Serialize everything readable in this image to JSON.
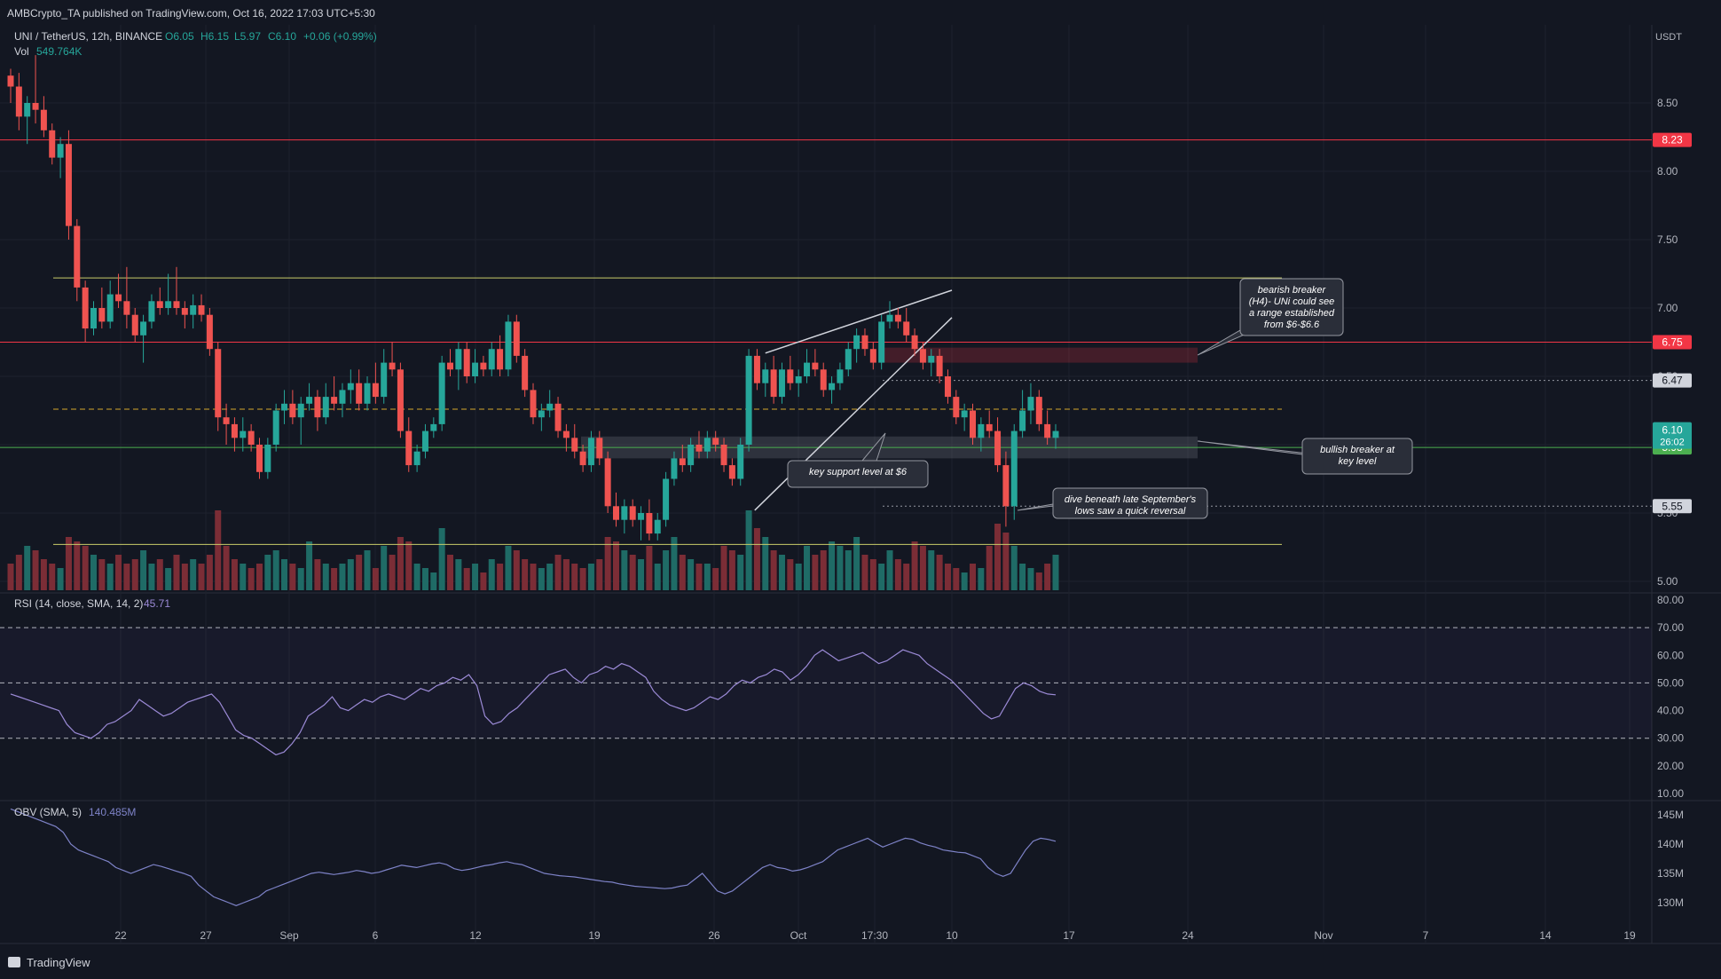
{
  "header": {
    "published": "AMBCrypto_TA published on TradingView.com, Oct 16, 2022 17:03 UTC+5:30",
    "symbol": "UNI / TetherUS, 12h, BINANCE",
    "ohlc": {
      "o": "O6.05",
      "h": "H6.15",
      "l": "L5.97",
      "c": "C6.10",
      "chg": "+0.06 (+0.99%)"
    },
    "vol_label": "Vol",
    "vol_value": "549.764K",
    "currency": "USDT"
  },
  "footer": {
    "logo_text": "TradingView"
  },
  "colors": {
    "bg": "#131722",
    "grid": "#1e222d",
    "up": "#26a69a",
    "down": "#ef5350",
    "up_vol": "#1f6b66",
    "down_vol": "#7b2d36",
    "red_level": "#f23645",
    "yellow_level": "#c9cc6a",
    "green_level": "#4caf50",
    "text": "#b2b5be",
    "rsi": "#7e57c2",
    "obv": "#7e83c8"
  },
  "chart_data": [
    {
      "type": "candlestick",
      "pane": "price",
      "x_ticks": [
        "22",
        "27",
        "Sep",
        "6",
        "12",
        "19",
        "26",
        "Oct",
        "17:30",
        "10",
        "17",
        "24",
        "Nov",
        "7",
        "14",
        "19"
      ],
      "y_ticks": [
        "8.50",
        "8.00",
        "7.50",
        "7.00",
        "6.50",
        "6.00",
        "5.50",
        "5.00"
      ],
      "ylim": [
        4.9,
        8.9
      ],
      "candles_ohlc": [
        [
          8.7,
          8.75,
          8.5,
          8.62
        ],
        [
          8.62,
          8.72,
          8.3,
          8.4
        ],
        [
          8.4,
          8.55,
          8.2,
          8.5
        ],
        [
          8.5,
          8.85,
          8.35,
          8.45
        ],
        [
          8.45,
          8.55,
          8.25,
          8.3
        ],
        [
          8.3,
          8.35,
          8.05,
          8.1
        ],
        [
          8.1,
          8.25,
          7.95,
          8.2
        ],
        [
          8.2,
          8.3,
          7.5,
          7.6
        ],
        [
          7.6,
          7.65,
          7.05,
          7.15
        ],
        [
          7.15,
          7.2,
          6.75,
          6.85
        ],
        [
          6.85,
          7.05,
          6.8,
          7.0
        ],
        [
          7.0,
          7.15,
          6.85,
          6.9
        ],
        [
          6.9,
          7.2,
          6.85,
          7.1
        ],
        [
          7.1,
          7.25,
          7.0,
          7.05
        ],
        [
          7.05,
          7.3,
          6.85,
          6.95
        ],
        [
          6.95,
          7.0,
          6.75,
          6.8
        ],
        [
          6.8,
          6.95,
          6.6,
          6.9
        ],
        [
          6.9,
          7.1,
          6.85,
          7.05
        ],
        [
          7.05,
          7.15,
          6.95,
          7.0
        ],
        [
          7.0,
          7.25,
          6.95,
          7.05
        ],
        [
          7.05,
          7.3,
          6.95,
          7.0
        ],
        [
          7.0,
          7.05,
          6.85,
          6.95
        ],
        [
          6.95,
          7.1,
          6.85,
          7.02
        ],
        [
          7.02,
          7.1,
          6.9,
          6.95
        ],
        [
          6.95,
          7.0,
          6.65,
          6.7
        ],
        [
          6.7,
          6.75,
          6.1,
          6.2
        ],
        [
          6.2,
          6.3,
          6.0,
          6.15
        ],
        [
          6.15,
          6.2,
          5.95,
          6.05
        ],
        [
          6.05,
          6.2,
          5.95,
          6.1
        ],
        [
          6.1,
          6.15,
          5.95,
          6.0
        ],
        [
          6.0,
          6.05,
          5.75,
          5.8
        ],
        [
          5.8,
          6.05,
          5.75,
          6.0
        ],
        [
          6.0,
          6.3,
          5.95,
          6.25
        ],
        [
          6.25,
          6.4,
          6.15,
          6.3
        ],
        [
          6.3,
          6.4,
          6.15,
          6.2
        ],
        [
          6.2,
          6.35,
          6.0,
          6.3
        ],
        [
          6.3,
          6.45,
          6.25,
          6.35
        ],
        [
          6.35,
          6.4,
          6.1,
          6.2
        ],
        [
          6.2,
          6.45,
          6.15,
          6.35
        ],
        [
          6.35,
          6.5,
          6.25,
          6.3
        ],
        [
          6.3,
          6.45,
          6.2,
          6.4
        ],
        [
          6.4,
          6.55,
          6.3,
          6.45
        ],
        [
          6.45,
          6.55,
          6.25,
          6.3
        ],
        [
          6.3,
          6.5,
          6.25,
          6.45
        ],
        [
          6.45,
          6.6,
          6.3,
          6.35
        ],
        [
          6.35,
          6.7,
          6.3,
          6.6
        ],
        [
          6.6,
          6.75,
          6.5,
          6.55
        ],
        [
          6.55,
          6.6,
          6.05,
          6.1
        ],
        [
          6.1,
          6.2,
          5.8,
          5.85
        ],
        [
          5.85,
          6.0,
          5.8,
          5.95
        ],
        [
          5.95,
          6.15,
          5.9,
          6.1
        ],
        [
          6.1,
          6.2,
          6.05,
          6.15
        ],
        [
          6.15,
          6.65,
          6.1,
          6.6
        ],
        [
          6.6,
          6.7,
          6.5,
          6.55
        ],
        [
          6.55,
          6.75,
          6.4,
          6.7
        ],
        [
          6.7,
          6.75,
          6.45,
          6.5
        ],
        [
          6.5,
          6.7,
          6.45,
          6.6
        ],
        [
          6.6,
          6.65,
          6.5,
          6.55
        ],
        [
          6.55,
          6.75,
          6.5,
          6.7
        ],
        [
          6.7,
          6.8,
          6.5,
          6.55
        ],
        [
          6.55,
          6.95,
          6.5,
          6.9
        ],
        [
          6.9,
          6.95,
          6.6,
          6.65
        ],
        [
          6.65,
          6.7,
          6.35,
          6.4
        ],
        [
          6.4,
          6.45,
          6.15,
          6.2
        ],
        [
          6.2,
          6.3,
          6.1,
          6.25
        ],
        [
          6.25,
          6.4,
          6.2,
          6.3
        ],
        [
          6.3,
          6.35,
          6.05,
          6.1
        ],
        [
          6.1,
          6.15,
          5.95,
          6.05
        ],
        [
          6.05,
          6.15,
          5.9,
          5.95
        ],
        [
          5.95,
          6.0,
          5.8,
          5.85
        ],
        [
          5.85,
          6.1,
          5.8,
          6.05
        ],
        [
          6.05,
          6.1,
          5.85,
          5.9
        ],
        [
          5.9,
          5.95,
          5.5,
          5.55
        ],
        [
          5.55,
          5.65,
          5.4,
          5.45
        ],
        [
          5.45,
          5.6,
          5.35,
          5.55
        ],
        [
          5.55,
          5.6,
          5.4,
          5.45
        ],
        [
          5.45,
          5.55,
          5.3,
          5.5
        ],
        [
          5.5,
          5.6,
          5.3,
          5.35
        ],
        [
          5.35,
          5.5,
          5.3,
          5.45
        ],
        [
          5.45,
          5.8,
          5.4,
          5.75
        ],
        [
          5.75,
          5.95,
          5.7,
          5.9
        ],
        [
          5.9,
          6.0,
          5.8,
          5.85
        ],
        [
          5.85,
          6.05,
          5.8,
          6.0
        ],
        [
          6.0,
          6.1,
          5.9,
          5.95
        ],
        [
          5.95,
          6.1,
          5.9,
          6.05
        ],
        [
          6.05,
          6.1,
          5.95,
          6.0
        ],
        [
          6.0,
          6.05,
          5.8,
          5.85
        ],
        [
          5.85,
          5.9,
          5.7,
          5.75
        ],
        [
          5.75,
          6.05,
          5.7,
          6.0
        ],
        [
          6.0,
          6.7,
          5.95,
          6.65
        ],
        [
          6.65,
          6.7,
          6.4,
          6.45
        ],
        [
          6.45,
          6.6,
          6.35,
          6.55
        ],
        [
          6.55,
          6.65,
          6.3,
          6.35
        ],
        [
          6.35,
          6.6,
          6.3,
          6.55
        ],
        [
          6.55,
          6.65,
          6.4,
          6.45
        ],
        [
          6.45,
          6.55,
          6.35,
          6.5
        ],
        [
          6.5,
          6.7,
          6.45,
          6.6
        ],
        [
          6.6,
          6.7,
          6.5,
          6.55
        ],
        [
          6.55,
          6.6,
          6.35,
          6.4
        ],
        [
          6.4,
          6.5,
          6.3,
          6.45
        ],
        [
          6.45,
          6.6,
          6.4,
          6.55
        ],
        [
          6.55,
          6.75,
          6.5,
          6.7
        ],
        [
          6.7,
          6.85,
          6.6,
          6.8
        ],
        [
          6.8,
          6.85,
          6.65,
          6.7
        ],
        [
          6.7,
          6.75,
          6.55,
          6.6
        ],
        [
          6.6,
          6.95,
          6.55,
          6.9
        ],
        [
          6.9,
          7.05,
          6.85,
          6.95
        ],
        [
          6.95,
          7.0,
          6.85,
          6.9
        ],
        [
          6.9,
          7.0,
          6.75,
          6.8
        ],
        [
          6.8,
          6.85,
          6.65,
          6.7
        ],
        [
          6.7,
          6.75,
          6.55,
          6.6
        ],
        [
          6.6,
          6.7,
          6.5,
          6.65
        ],
        [
          6.65,
          6.7,
          6.45,
          6.5
        ],
        [
          6.5,
          6.55,
          6.3,
          6.35
        ],
        [
          6.35,
          6.4,
          6.15,
          6.2
        ],
        [
          6.2,
          6.3,
          6.1,
          6.25
        ],
        [
          6.25,
          6.3,
          6.0,
          6.05
        ],
        [
          6.05,
          6.2,
          5.95,
          6.15
        ],
        [
          6.15,
          6.25,
          6.05,
          6.1
        ],
        [
          6.1,
          6.2,
          5.8,
          5.85
        ],
        [
          5.85,
          5.95,
          5.4,
          5.55
        ],
        [
          5.55,
          6.15,
          5.45,
          6.1
        ],
        [
          6.1,
          6.4,
          6.05,
          6.25
        ],
        [
          6.25,
          6.45,
          6.15,
          6.35
        ],
        [
          6.35,
          6.4,
          6.1,
          6.15
        ],
        [
          6.15,
          6.25,
          6.0,
          6.05
        ],
        [
          6.05,
          6.15,
          5.97,
          6.1
        ]
      ],
      "levels": [
        {
          "value": 8.23,
          "label": "8.23",
          "color": "#f23645"
        },
        {
          "value": 7.22,
          "color": "#c9cc6a"
        },
        {
          "value": 6.75,
          "label": "6.75",
          "color": "#f23645"
        },
        {
          "value": 6.47,
          "label": "6.47",
          "style": "dotted",
          "color": "#9598a1"
        },
        {
          "value": 6.26,
          "style": "dashed",
          "color": "#d4a72c"
        },
        {
          "value": 5.98,
          "label": "5.98",
          "color": "#4caf50"
        },
        {
          "value": 5.55,
          "label": "5.55",
          "style": "dotted",
          "color": "#9598a1"
        },
        {
          "value": 5.27,
          "color": "#c9cc6a"
        }
      ],
      "current_price": {
        "label": "6.10",
        "countdown": "26:02"
      },
      "annotations": [
        {
          "text": "bearish breaker (H4)- UNi could see a range established from $6-$6.6"
        },
        {
          "text": "key support level at $6"
        },
        {
          "text": "bullish breaker at key level"
        },
        {
          "text": "dive beneath late September's lows saw a quick reversal"
        }
      ],
      "zones": [
        {
          "name": "bearish breaker",
          "from": 6.6,
          "to": 6.71
        },
        {
          "name": "bullish breaker",
          "from": 5.9,
          "to": 6.06
        }
      ],
      "wedge": {
        "lower": [
          [
            5.5,
            6.5
          ],
          [
            5.8,
            6.92
          ]
        ],
        "upper": [
          [
            6.65,
            7.12
          ]
        ]
      }
    },
    {
      "type": "line",
      "pane": "rsi",
      "title": "RSI (14, close, SMA, 14, 2)",
      "last": "45.71",
      "ylim": [
        0,
        80
      ],
      "y_ticks": [
        "80.00",
        "70.00",
        "60.00",
        "50.00",
        "40.00",
        "30.00",
        "20.00",
        "10.00"
      ],
      "bands": [
        30,
        50,
        70
      ],
      "values": [
        46,
        45,
        44,
        43,
        42,
        41,
        40,
        35,
        32,
        31,
        30,
        32,
        35,
        36,
        38,
        40,
        44,
        42,
        40,
        38,
        39,
        41,
        43,
        44,
        45,
        46,
        43,
        38,
        33,
        31,
        30,
        28,
        26,
        24,
        25,
        28,
        32,
        38,
        40,
        42,
        45,
        41,
        40,
        42,
        44,
        43,
        45,
        46,
        45,
        44,
        46,
        48,
        47,
        49,
        50,
        52,
        51,
        53,
        49,
        38,
        35,
        36,
        39,
        41,
        44,
        47,
        50,
        53,
        54,
        55,
        52,
        50,
        53,
        54,
        56,
        55,
        57,
        56,
        54,
        52,
        47,
        44,
        42,
        41,
        40,
        41,
        43,
        45,
        44,
        46,
        49,
        51,
        50,
        52,
        53,
        55,
        54,
        51,
        53,
        56,
        60,
        62,
        60,
        58,
        59,
        60,
        61,
        59,
        57,
        58,
        60,
        62,
        61,
        60,
        57,
        55,
        53,
        51,
        48,
        45,
        42,
        39,
        37,
        38,
        43,
        48,
        50,
        49,
        47,
        46,
        45.71
      ]
    },
    {
      "type": "line",
      "pane": "obv",
      "title": "OBV (SMA, 5)",
      "last": "140.485M",
      "ylim": [
        127,
        147
      ],
      "y_ticks": [
        "145M",
        "140M",
        "135M",
        "130M"
      ],
      "values": [
        146,
        145.5,
        145,
        144.5,
        144,
        143.5,
        143,
        142,
        140,
        139,
        138.5,
        138,
        137.5,
        137,
        136,
        135.5,
        135,
        135.5,
        136,
        136.5,
        136.2,
        135.8,
        135.4,
        135,
        134.5,
        133,
        132,
        131,
        130.5,
        130,
        129.5,
        130,
        130.5,
        131,
        132,
        132.5,
        133,
        133.5,
        134,
        134.5,
        135,
        135.2,
        135,
        134.8,
        135,
        135.2,
        135.5,
        135.3,
        135,
        135.2,
        135.6,
        136,
        136.4,
        136.2,
        136,
        136.3,
        136.6,
        136.8,
        136.5,
        135.8,
        135.5,
        135.7,
        136,
        136.3,
        136.5,
        136.8,
        137,
        136.7,
        136.5,
        136,
        135.5,
        135,
        134.8,
        134.6,
        134.5,
        134.4,
        134.2,
        134,
        133.8,
        133.6,
        133.5,
        133.2,
        133,
        132.8,
        132.7,
        132.6,
        132.5,
        132.4,
        132.5,
        132.8,
        133,
        134,
        135,
        133.5,
        132,
        131.5,
        132,
        133,
        134,
        135,
        136,
        136.5,
        136,
        135.8,
        135.4,
        135.6,
        136,
        136.5,
        137,
        138,
        139,
        139.5,
        140,
        140.5,
        141,
        140.2,
        139.5,
        140,
        140.5,
        141,
        140.8,
        140.2,
        139.8,
        139.5,
        139,
        138.8,
        138.6,
        138.5,
        138,
        137.5,
        136,
        135,
        134.5,
        135,
        137,
        139,
        140.5,
        141,
        140.8,
        140.485
      ]
    }
  ]
}
